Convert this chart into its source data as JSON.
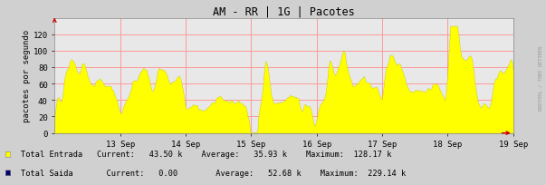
{
  "title": "AM - RR | 1G | Pacotes",
  "ylabel": "pacotes por segundo",
  "bg_color": "#d0d0d0",
  "plot_bg_color": "#e8e8e8",
  "grid_color": "#ff9999",
  "yticks": [
    0,
    20000,
    40000,
    60000,
    80000,
    100000,
    120000
  ],
  "ytick_labels": [
    "0",
    "20",
    "40",
    "60",
    "80",
    "100",
    "120"
  ],
  "x_labels": [
    "13 Sep",
    "14 Sep",
    "15 Sep",
    "16 Sep",
    "17 Sep",
    "18 Sep",
    "19 Sep"
  ],
  "area_color_entrada": "#ffff00",
  "area_edge_entrada": "#c8c800",
  "area_color_saida": "#00006e",
  "watermark": "RRDTOOL / TOBI OETIKER",
  "arrow_color": "#cc0000",
  "num_points": 336,
  "legend_entrada_color": "#ffff00",
  "legend_saida_color": "#00006e",
  "legend_line1": "Total Entrada   Current:   43.50 k    Average:   35.93 k    Maximum:  128.17 k",
  "legend_line2": "Total Saida       Current:   0.00        Average:   52.68 k    Maximum:  229.14 k"
}
